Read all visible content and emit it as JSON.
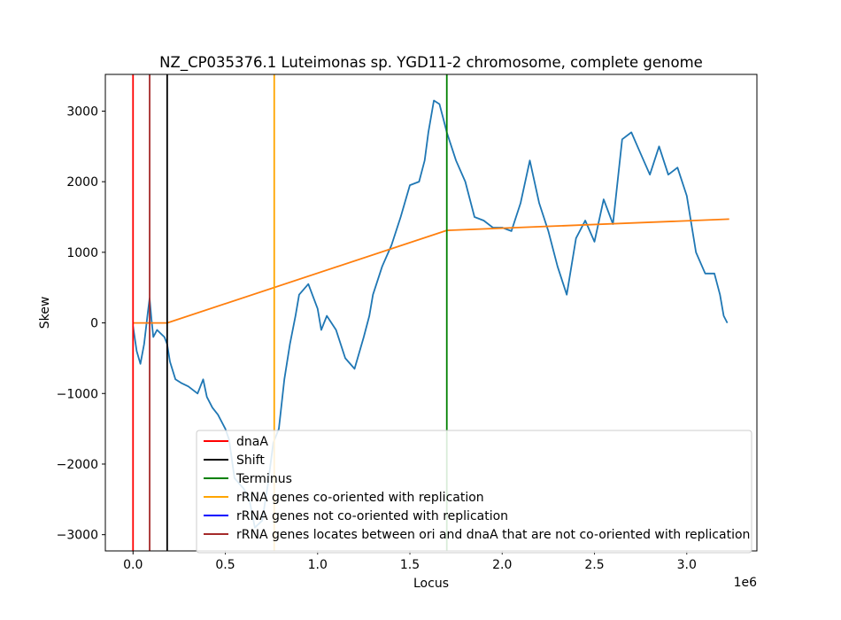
{
  "chart_data": {
    "type": "line",
    "title": "NZ_CP035376.1 Luteimonas sp. YGD11-2 chromosome, complete genome",
    "xlabel": "Locus",
    "ylabel": "Skew",
    "x_offset_label": "1e6",
    "xlim": [
      -150000,
      3380000
    ],
    "ylim": [
      -3230.0,
      3520
    ],
    "x_scale": 1000000,
    "x_ticks": [
      0,
      500000,
      1000000,
      1500000,
      2000000,
      2500000,
      3000000
    ],
    "x_tick_labels": [
      "0.0",
      "0.5",
      "1.0",
      "1.5",
      "2.0",
      "2.5",
      "3.0"
    ],
    "y_ticks": [
      -3000,
      -2000,
      -1000,
      0,
      1000,
      2000,
      3000
    ],
    "y_tick_labels": [
      "−3000",
      "−2000",
      "−1000",
      "0",
      "1000",
      "2000",
      "3000"
    ],
    "grid": false,
    "legend_position": "lower-right",
    "series": [
      {
        "role": "skew",
        "color": "#1f77b4",
        "x": [
          0,
          20000,
          40000,
          60000,
          80000,
          90000,
          100000,
          110000,
          130000,
          150000,
          170000,
          185000,
          200000,
          230000,
          260000,
          300000,
          350000,
          380000,
          400000,
          430000,
          460000,
          500000,
          520000,
          550000,
          600000,
          630000,
          660000,
          700000,
          730000,
          760000,
          790000,
          820000,
          850000,
          880000,
          900000,
          950000,
          1000000,
          1020000,
          1050000,
          1100000,
          1150000,
          1200000,
          1250000,
          1280000,
          1300000,
          1350000,
          1400000,
          1450000,
          1500000,
          1550000,
          1580000,
          1600000,
          1630000,
          1660000,
          1680000,
          1700000,
          1750000,
          1800000,
          1850000,
          1900000,
          1950000,
          2000000,
          2050000,
          2100000,
          2150000,
          2200000,
          2250000,
          2300000,
          2350000,
          2400000,
          2450000,
          2500000,
          2550000,
          2600000,
          2650000,
          2700000,
          2750000,
          2800000,
          2850000,
          2900000,
          2950000,
          3000000,
          3050000,
          3100000,
          3150000,
          3180000,
          3200000,
          3220000
        ],
        "y": [
          -50,
          -400,
          -580,
          -300,
          150,
          350,
          50,
          -200,
          -100,
          -150,
          -200,
          -300,
          -550,
          -800,
          -850,
          -900,
          -1000,
          -800,
          -1050,
          -1200,
          -1300,
          -1500,
          -1650,
          -2200,
          -2350,
          -2500,
          -2900,
          -2800,
          -2300,
          -1700,
          -1500,
          -800,
          -300,
          100,
          400,
          550,
          200,
          -100,
          100,
          -100,
          -500,
          -650,
          -200,
          100,
          400,
          800,
          1100,
          1500,
          1950,
          2000,
          2300,
          2700,
          3150,
          3100,
          2900,
          2700,
          2300,
          2000,
          1500,
          1450,
          1350,
          1350,
          1300,
          1700,
          2300,
          1700,
          1300,
          800,
          400,
          1200,
          1450,
          1150,
          1750,
          1400,
          2600,
          2700,
          2400,
          2100,
          2500,
          2100,
          2200,
          1800,
          1000,
          700,
          700,
          400,
          100,
          0
        ],
        "name": ""
      },
      {
        "role": "trend",
        "color": "#ff7f0e",
        "x": [
          0,
          185000,
          1700000,
          3230000
        ],
        "y": [
          0,
          0,
          1310,
          1470
        ],
        "name": ""
      }
    ],
    "vlines": [
      {
        "label": "dnaA",
        "x": 0,
        "color": "#ff0000"
      },
      {
        "label": "rRNA genes locates between ori and dnaA that are not co-oriented with replication",
        "x": 90000,
        "color": "#a52a2a"
      },
      {
        "label": "Shift",
        "x": 185000,
        "color": "#000000"
      },
      {
        "label": "rRNA genes co-oriented with replication",
        "x": 765000,
        "color": "#ffa500"
      },
      {
        "label": "Terminus",
        "x": 1700000,
        "color": "#008000"
      }
    ],
    "legend": [
      {
        "label": "dnaA",
        "color": "#ff0000"
      },
      {
        "label": "Shift",
        "color": "#000000"
      },
      {
        "label": "Terminus",
        "color": "#008000"
      },
      {
        "label": "rRNA genes co-oriented with replication",
        "color": "#ffa500"
      },
      {
        "label": "rRNA genes not co-oriented with replication",
        "color": "#0000ff"
      },
      {
        "label": "rRNA genes locates between ori and dnaA that are not co-oriented with replication",
        "color": "#a52a2a"
      }
    ]
  }
}
